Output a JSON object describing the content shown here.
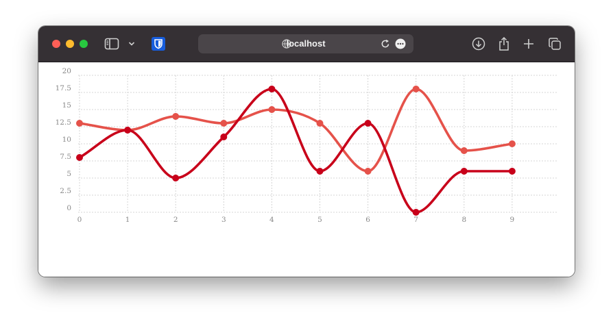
{
  "browser": {
    "url": "localhost",
    "icons": [
      "sidebar-icon",
      "chevron-down-icon",
      "bitwarden-shield-icon",
      "globe-icon",
      "reload-icon",
      "more-icon",
      "download-icon",
      "share-icon",
      "plus-icon",
      "tabs-icon"
    ]
  },
  "chart_data": {
    "type": "line",
    "smooth": true,
    "x": [
      0,
      1,
      2,
      3,
      4,
      5,
      6,
      7,
      8,
      9
    ],
    "x_ticks": [
      "0",
      "1",
      "2",
      "3",
      "4",
      "5",
      "6",
      "7",
      "8",
      "9"
    ],
    "y_ticks": [
      "0",
      "2.5",
      "5",
      "7.5",
      "10",
      "12.5",
      "15",
      "17.5",
      "20"
    ],
    "ylim": [
      0,
      20
    ],
    "grid": true,
    "series": [
      {
        "values": [
          8,
          12,
          5,
          11,
          18,
          6,
          13,
          0,
          6,
          6
        ],
        "color": "#c8001a"
      },
      {
        "values": [
          13,
          12,
          14,
          13,
          15,
          13,
          6,
          18,
          9,
          10
        ],
        "color": "#e5524a"
      }
    ]
  }
}
